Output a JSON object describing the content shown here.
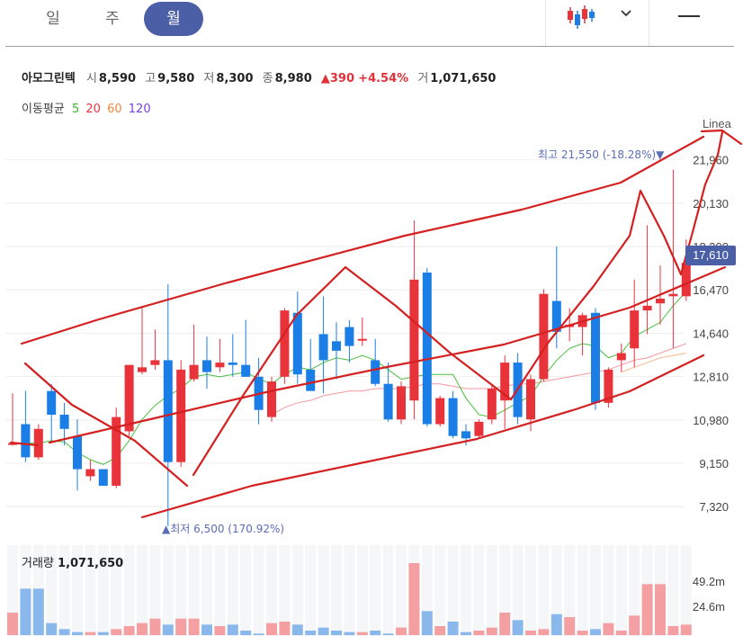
{
  "tabs": [
    {
      "label": "일",
      "active": false
    },
    {
      "label": "주",
      "active": false
    },
    {
      "label": "월",
      "active": true
    }
  ],
  "toolbar": {
    "chart_type_icon": "candlestick-icon",
    "dropdown_icon": "chevron-down-icon",
    "menu_icon": "menu-icon"
  },
  "quote": {
    "name": "아모그린텍",
    "open_label": "시",
    "open": "8,590",
    "high_label": "고",
    "high": "9,580",
    "low_label": "저",
    "low": "8,300",
    "close_label": "종",
    "close": "8,980",
    "change": "▲390",
    "change_pct": "+4.54%",
    "volume_label": "거",
    "volume": "1,071,650"
  },
  "moving_average": {
    "label": "이동평균",
    "periods": [
      "5",
      "20",
      "60",
      "120"
    ]
  },
  "colors": {
    "up": "#e8333b",
    "down": "#1a7ee6",
    "accent": "#4b5fa6",
    "ma5": "#35b82a",
    "ma20": "#e8333b",
    "ma60": "#f0883a",
    "ma120": "#7a3fe0",
    "drawing": "#d42020",
    "vol_up": "#f4a0a3",
    "vol_down": "#8ab8ec"
  },
  "current_price_tag": "17,610",
  "volume_panel": {
    "label": "거래량",
    "value": "1,071,650"
  },
  "chart_data": {
    "type": "candlestick",
    "price_axis_ticks": [
      "21,960",
      "20,130",
      "18,300",
      "16,470",
      "14,640",
      "12,810",
      "10,980",
      "9,150",
      "7,320"
    ],
    "price_axis_values": [
      21960,
      20130,
      18300,
      16470,
      14640,
      12810,
      10980,
      9150,
      7320
    ],
    "ylim": [
      6300,
      23200
    ],
    "drawing_label": "Linea",
    "max_annotation": "최고 21,550 (-18.28%)▼",
    "min_annotation": "▲최저 6,500 (170.92%)",
    "candles": [
      {
        "o": 10000,
        "h": 12100,
        "l": 9900,
        "c": 10000,
        "d": 0
      },
      {
        "o": 10800,
        "h": 12200,
        "l": 9200,
        "c": 9400,
        "d": 1
      },
      {
        "o": 9400,
        "h": 10800,
        "l": 9300,
        "c": 10600,
        "d": 0
      },
      {
        "o": 12200,
        "h": 12500,
        "l": 10100,
        "c": 11200,
        "d": 1
      },
      {
        "o": 11200,
        "h": 11700,
        "l": 9900,
        "c": 10600,
        "d": 1
      },
      {
        "o": 10300,
        "h": 11000,
        "l": 8000,
        "c": 8900,
        "d": 1
      },
      {
        "o": 8900,
        "h": 9300,
        "l": 8400,
        "c": 8600,
        "d": 0
      },
      {
        "o": 8900,
        "h": 8900,
        "l": 8200,
        "c": 8200,
        "d": 1
      },
      {
        "o": 8200,
        "h": 11500,
        "l": 8100,
        "c": 11100,
        "d": 0
      },
      {
        "o": 10500,
        "h": 13300,
        "l": 10300,
        "c": 13300,
        "d": 0
      },
      {
        "o": 13000,
        "h": 15800,
        "l": 12900,
        "c": 13200,
        "d": 0
      },
      {
        "o": 13300,
        "h": 14800,
        "l": 13100,
        "c": 13500,
        "d": 0
      },
      {
        "o": 13500,
        "h": 16700,
        "l": 6500,
        "c": 9200,
        "d": 1
      },
      {
        "o": 9200,
        "h": 13500,
        "l": 9000,
        "c": 13100,
        "d": 0
      },
      {
        "o": 12700,
        "h": 15000,
        "l": 12600,
        "c": 13300,
        "d": 0
      },
      {
        "o": 13500,
        "h": 14500,
        "l": 12300,
        "c": 13000,
        "d": 1
      },
      {
        "o": 13200,
        "h": 14400,
        "l": 13000,
        "c": 13400,
        "d": 0
      },
      {
        "o": 13400,
        "h": 14600,
        "l": 12800,
        "c": 13300,
        "d": 1
      },
      {
        "o": 13300,
        "h": 15200,
        "l": 12800,
        "c": 12800,
        "d": 1
      },
      {
        "o": 12800,
        "h": 13600,
        "l": 10800,
        "c": 11400,
        "d": 1
      },
      {
        "o": 11100,
        "h": 12800,
        "l": 10900,
        "c": 12600,
        "d": 0
      },
      {
        "o": 12800,
        "h": 15700,
        "l": 12500,
        "c": 15600,
        "d": 0
      },
      {
        "o": 15500,
        "h": 16400,
        "l": 12500,
        "c": 12900,
        "d": 1
      },
      {
        "o": 13100,
        "h": 14400,
        "l": 12300,
        "c": 12200,
        "d": 1
      },
      {
        "o": 14600,
        "h": 16200,
        "l": 12100,
        "c": 13500,
        "d": 1
      },
      {
        "o": 14300,
        "h": 15100,
        "l": 12700,
        "c": 13900,
        "d": 1
      },
      {
        "o": 14900,
        "h": 15200,
        "l": 13400,
        "c": 14100,
        "d": 1
      },
      {
        "o": 14400,
        "h": 15300,
        "l": 14100,
        "c": 14400,
        "d": 0
      },
      {
        "o": 13500,
        "h": 14400,
        "l": 12400,
        "c": 12500,
        "d": 1
      },
      {
        "o": 12500,
        "h": 13400,
        "l": 10900,
        "c": 11000,
        "d": 1
      },
      {
        "o": 11000,
        "h": 12600,
        "l": 10800,
        "c": 12400,
        "d": 0
      },
      {
        "o": 11800,
        "h": 19400,
        "l": 11000,
        "c": 16900,
        "d": 0
      },
      {
        "o": 17200,
        "h": 17400,
        "l": 10700,
        "c": 10800,
        "d": 1
      },
      {
        "o": 10800,
        "h": 12000,
        "l": 10700,
        "c": 11900,
        "d": 0
      },
      {
        "o": 11900,
        "h": 12200,
        "l": 10200,
        "c": 10300,
        "d": 1
      },
      {
        "o": 10200,
        "h": 10800,
        "l": 9900,
        "c": 10500,
        "d": 1
      },
      {
        "o": 10300,
        "h": 11000,
        "l": 10200,
        "c": 10900,
        "d": 0
      },
      {
        "o": 11000,
        "h": 12500,
        "l": 10800,
        "c": 12300,
        "d": 0
      },
      {
        "o": 11800,
        "h": 13700,
        "l": 10600,
        "c": 13400,
        "d": 0
      },
      {
        "o": 13400,
        "h": 13800,
        "l": 10800,
        "c": 11100,
        "d": 1
      },
      {
        "o": 11000,
        "h": 12900,
        "l": 10500,
        "c": 12700,
        "d": 0
      },
      {
        "o": 12700,
        "h": 16500,
        "l": 12600,
        "c": 16300,
        "d": 0
      },
      {
        "o": 16000,
        "h": 18300,
        "l": 14000,
        "c": 14700,
        "d": 1
      },
      {
        "o": 14900,
        "h": 15700,
        "l": 14300,
        "c": 15000,
        "d": 0
      },
      {
        "o": 14900,
        "h": 15500,
        "l": 13700,
        "c": 15400,
        "d": 0
      },
      {
        "o": 15500,
        "h": 15700,
        "l": 11400,
        "c": 11700,
        "d": 1
      },
      {
        "o": 11700,
        "h": 13200,
        "l": 11500,
        "c": 13100,
        "d": 0
      },
      {
        "o": 13500,
        "h": 14200,
        "l": 13000,
        "c": 13800,
        "d": 0
      },
      {
        "o": 14000,
        "h": 16900,
        "l": 13200,
        "c": 15600,
        "d": 0
      },
      {
        "o": 15600,
        "h": 19200,
        "l": 14600,
        "c": 15800,
        "d": 0
      },
      {
        "o": 15900,
        "h": 17500,
        "l": 15000,
        "c": 16100,
        "d": 0
      },
      {
        "o": 16300,
        "h": 21550,
        "l": 14000,
        "c": 16200,
        "d": 0
      },
      {
        "o": 16200,
        "h": 18600,
        "l": 16000,
        "c": 17610,
        "d": 0
      }
    ],
    "ma5": [
      10000,
      10000,
      10000,
      10100,
      10050,
      9600,
      9300,
      9100,
      9400,
      10100,
      11000,
      11600,
      12000,
      12300,
      12800,
      12900,
      12800,
      12900,
      13000,
      12700,
      12500,
      12900,
      13200,
      13100,
      13400,
      13600,
      13500,
      13700,
      13500,
      13100,
      12700,
      12800,
      12900,
      12900,
      12900,
      11900,
      11200,
      11100,
      11400,
      11700,
      12000,
      12800,
      13500,
      14000,
      14200,
      14100,
      13600,
      13800,
      14500,
      14800,
      15100,
      15800,
      16400
    ],
    "ma20": [
      null,
      null,
      null,
      null,
      null,
      null,
      null,
      null,
      null,
      null,
      null,
      null,
      null,
      null,
      null,
      null,
      null,
      null,
      null,
      null,
      11200,
      11500,
      11700,
      11800,
      12000,
      12100,
      12200,
      12200,
      12300,
      12300,
      12300,
      12400,
      12500,
      12500,
      12400,
      12300,
      12300,
      12300,
      12400,
      12500,
      12500,
      12600,
      12700,
      12800,
      12900,
      13000,
      13100,
      13300,
      13500,
      13600,
      13800,
      14000,
      14200
    ],
    "ma60": [
      null,
      null,
      null,
      null,
      null,
      null,
      null,
      null,
      null,
      null,
      null,
      null,
      null,
      null,
      null,
      null,
      null,
      null,
      null,
      null,
      null,
      null,
      null,
      null,
      null,
      null,
      null,
      null,
      null,
      null,
      null,
      null,
      null,
      null,
      null,
      null,
      null,
      null,
      null,
      null,
      null,
      null,
      null,
      null,
      null,
      null,
      null,
      13000,
      13200,
      13400,
      13600,
      13700,
      13800
    ]
  },
  "drawing_lines": [
    [
      [
        24,
        382
      ],
      [
        110,
        355
      ],
      [
        250,
        315
      ],
      [
        450,
        262
      ],
      [
        580,
        233
      ],
      [
        690,
        203
      ],
      [
        782,
        152
      ]
    ],
    [
      [
        158,
        575
      ],
      [
        280,
        540
      ],
      [
        400,
        515
      ],
      [
        530,
        488
      ],
      [
        640,
        455
      ],
      [
        700,
        435
      ],
      [
        782,
        395
      ]
    ],
    [
      [
        55,
        492
      ],
      [
        150,
        470
      ],
      [
        300,
        435
      ],
      [
        430,
        408
      ],
      [
        560,
        383
      ],
      [
        700,
        342
      ],
      [
        806,
        297
      ]
    ],
    [
      [
        28,
        404
      ],
      [
        80,
        450
      ],
      [
        150,
        490
      ],
      [
        208,
        540
      ]
    ],
    [
      [
        215,
        528
      ],
      [
        270,
        440
      ],
      [
        330,
        350
      ],
      [
        384,
        297
      ]
    ],
    [
      [
        384,
        297
      ],
      [
        440,
        340
      ],
      [
        500,
        392
      ],
      [
        568,
        444
      ]
    ],
    [
      [
        568,
        444
      ],
      [
        610,
        380
      ],
      [
        660,
        318
      ],
      [
        700,
        262
      ],
      [
        712,
        212
      ],
      [
        738,
        262
      ],
      [
        757,
        305
      ]
    ],
    [
      [
        757,
        305
      ],
      [
        770,
        258
      ],
      [
        784,
        205
      ],
      [
        798,
        172
      ],
      [
        803,
        147
      ]
    ],
    [
      [
        12,
        492
      ],
      [
        42,
        495
      ]
    ],
    [
      [
        780,
        146
      ],
      [
        803,
        145
      ],
      [
        824,
        160
      ]
    ]
  ],
  "volume": {
    "ticks": [
      "49.2m",
      "24.6m"
    ],
    "values": [
      15,
      31,
      31,
      8,
      4,
      2,
      2,
      2,
      4,
      6,
      8,
      11,
      7,
      11,
      11,
      7,
      6,
      7,
      3,
      1,
      8,
      9,
      7,
      3,
      5,
      3,
      2,
      2,
      3,
      1,
      5,
      48,
      16,
      6,
      9,
      2,
      3,
      5,
      15,
      10,
      3,
      4,
      14,
      12,
      3,
      4,
      8,
      3,
      13,
      34,
      34,
      6,
      7
    ],
    "dir": [
      0,
      1,
      1,
      1,
      1,
      1,
      0,
      1,
      0,
      0,
      0,
      0,
      1,
      0,
      0,
      1,
      0,
      1,
      1,
      1,
      0,
      0,
      1,
      1,
      1,
      1,
      1,
      0,
      1,
      1,
      0,
      0,
      1,
      0,
      1,
      1,
      0,
      0,
      0,
      1,
      0,
      0,
      1,
      0,
      0,
      1,
      0,
      0,
      0,
      0,
      0,
      0,
      0
    ],
    "ymax": 60
  }
}
